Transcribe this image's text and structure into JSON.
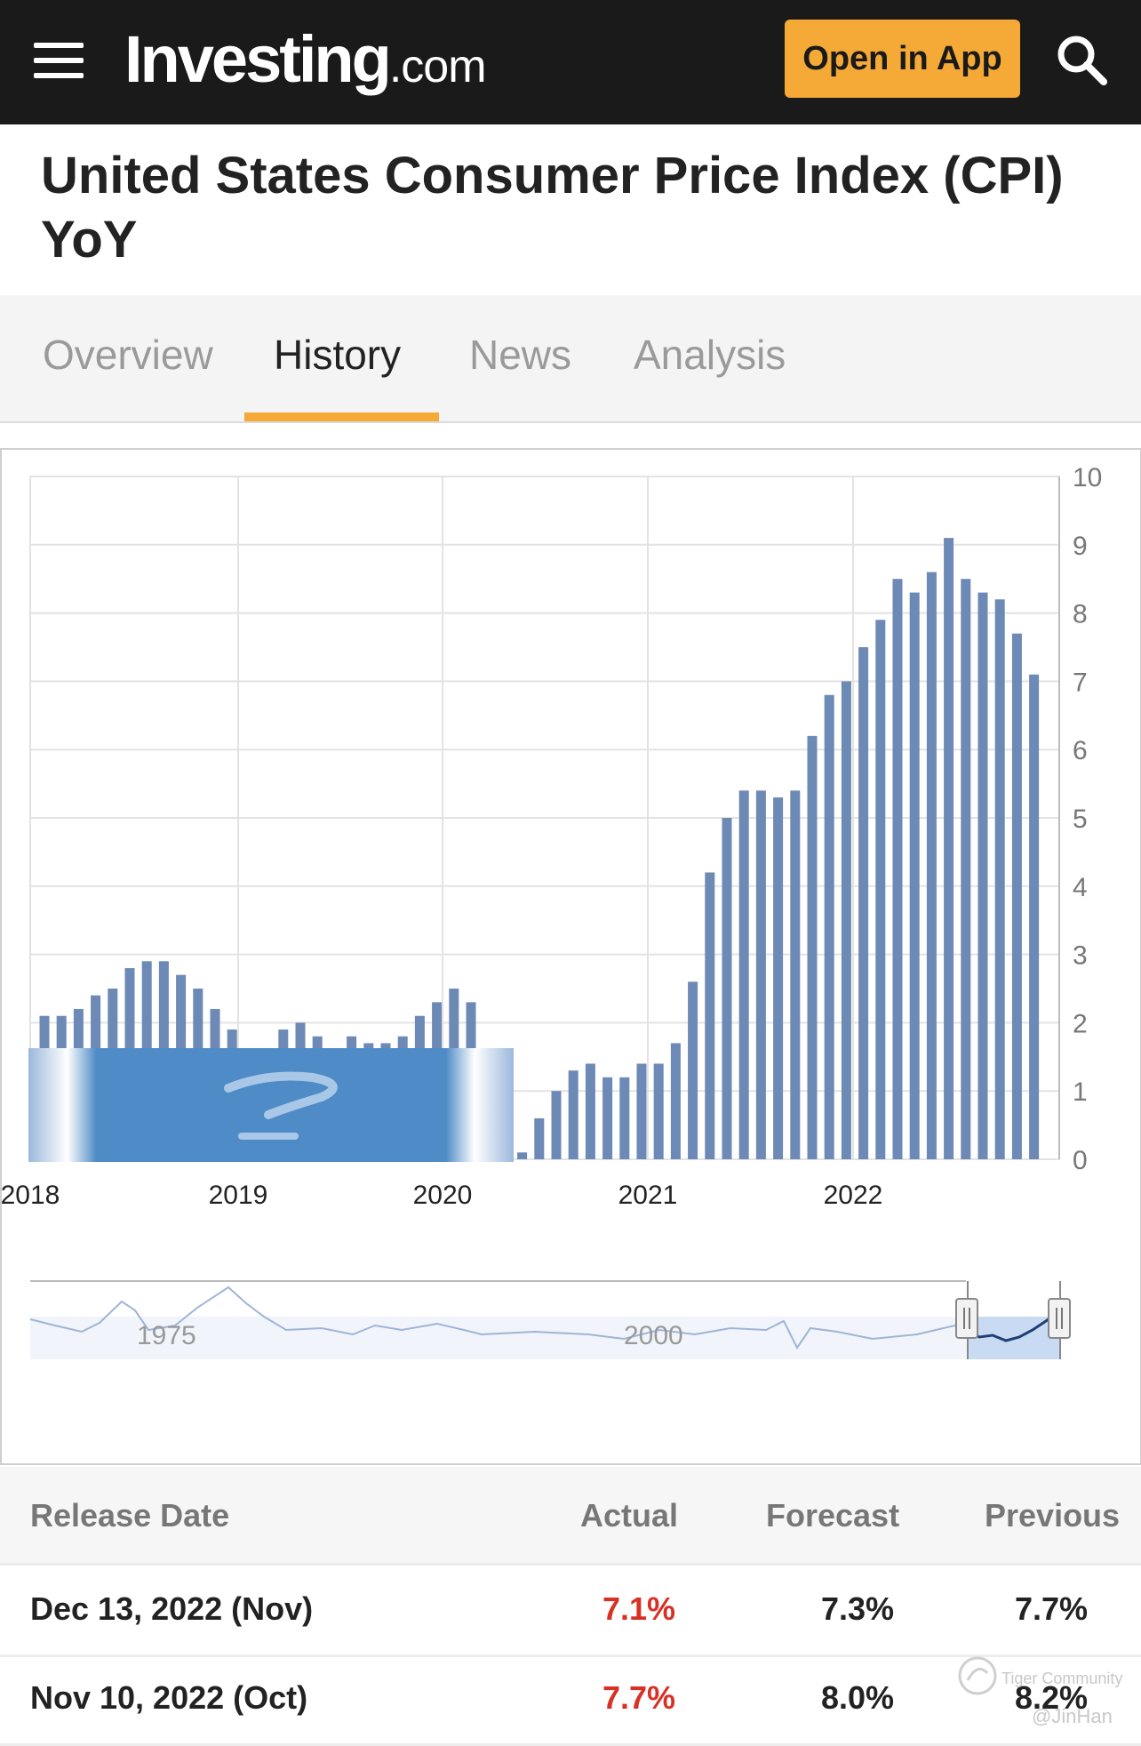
{
  "header": {
    "logo_main": "Investing",
    "logo_suffix": ".com",
    "open_app_label": "Open in App"
  },
  "title": "United States Consumer Price Index (CPI) YoY",
  "tabs": [
    {
      "label": "Overview",
      "active": false
    },
    {
      "label": "History",
      "active": true
    },
    {
      "label": "News",
      "active": false
    },
    {
      "label": "Analysis",
      "active": false
    }
  ],
  "chart_data": {
    "type": "bar",
    "title": "",
    "xlabel": "",
    "ylabel": "",
    "ylim": [
      0,
      10
    ],
    "y_ticks": [
      0,
      1,
      2,
      3,
      4,
      5,
      6,
      7,
      8,
      9,
      10
    ],
    "x_tick_labels": [
      "2018",
      "2019",
      "2020",
      "2021",
      "2022"
    ],
    "grid": true,
    "series": [
      {
        "values": [
          2.1,
          2.1,
          2.2,
          2.4,
          2.5,
          2.8,
          2.9,
          2.9,
          2.7,
          2.5,
          2.2,
          1.9,
          1.6,
          1.5,
          1.9,
          2.0,
          1.8,
          1.6,
          1.8,
          1.7,
          1.7,
          1.8,
          2.1,
          2.3,
          2.5,
          2.3,
          1.5,
          0.3,
          0.1,
          0.6,
          1.0,
          1.3,
          1.4,
          1.2,
          1.2,
          1.4,
          1.4,
          1.7,
          2.6,
          4.2,
          5.0,
          5.4,
          5.4,
          5.3,
          5.4,
          6.2,
          6.8,
          7.0,
          7.5,
          7.9,
          8.5,
          8.3,
          8.6,
          9.1,
          8.5,
          8.3,
          8.2,
          7.7,
          7.1
        ]
      }
    ],
    "navigator": {
      "labels": [
        "1975",
        "2000"
      ]
    }
  },
  "table": {
    "headers": [
      "Release Date",
      "Actual",
      "Forecast",
      "Previous"
    ],
    "rows": [
      {
        "date": "Dec 13, 2022 (Nov)",
        "actual": "7.1%",
        "forecast": "7.3%",
        "previous": "7.7%"
      },
      {
        "date": "Nov 10, 2022 (Oct)",
        "actual": "7.7%",
        "forecast": "8.0%",
        "previous": "8.2%"
      }
    ]
  },
  "colors": {
    "accent": "#f5a936",
    "bar": "#6d89b5",
    "negative_actual": "#d93025",
    "header_bg": "#1a1a1a"
  },
  "watermark": {
    "line1": "Tiger Community",
    "line2": "@JinHan"
  }
}
